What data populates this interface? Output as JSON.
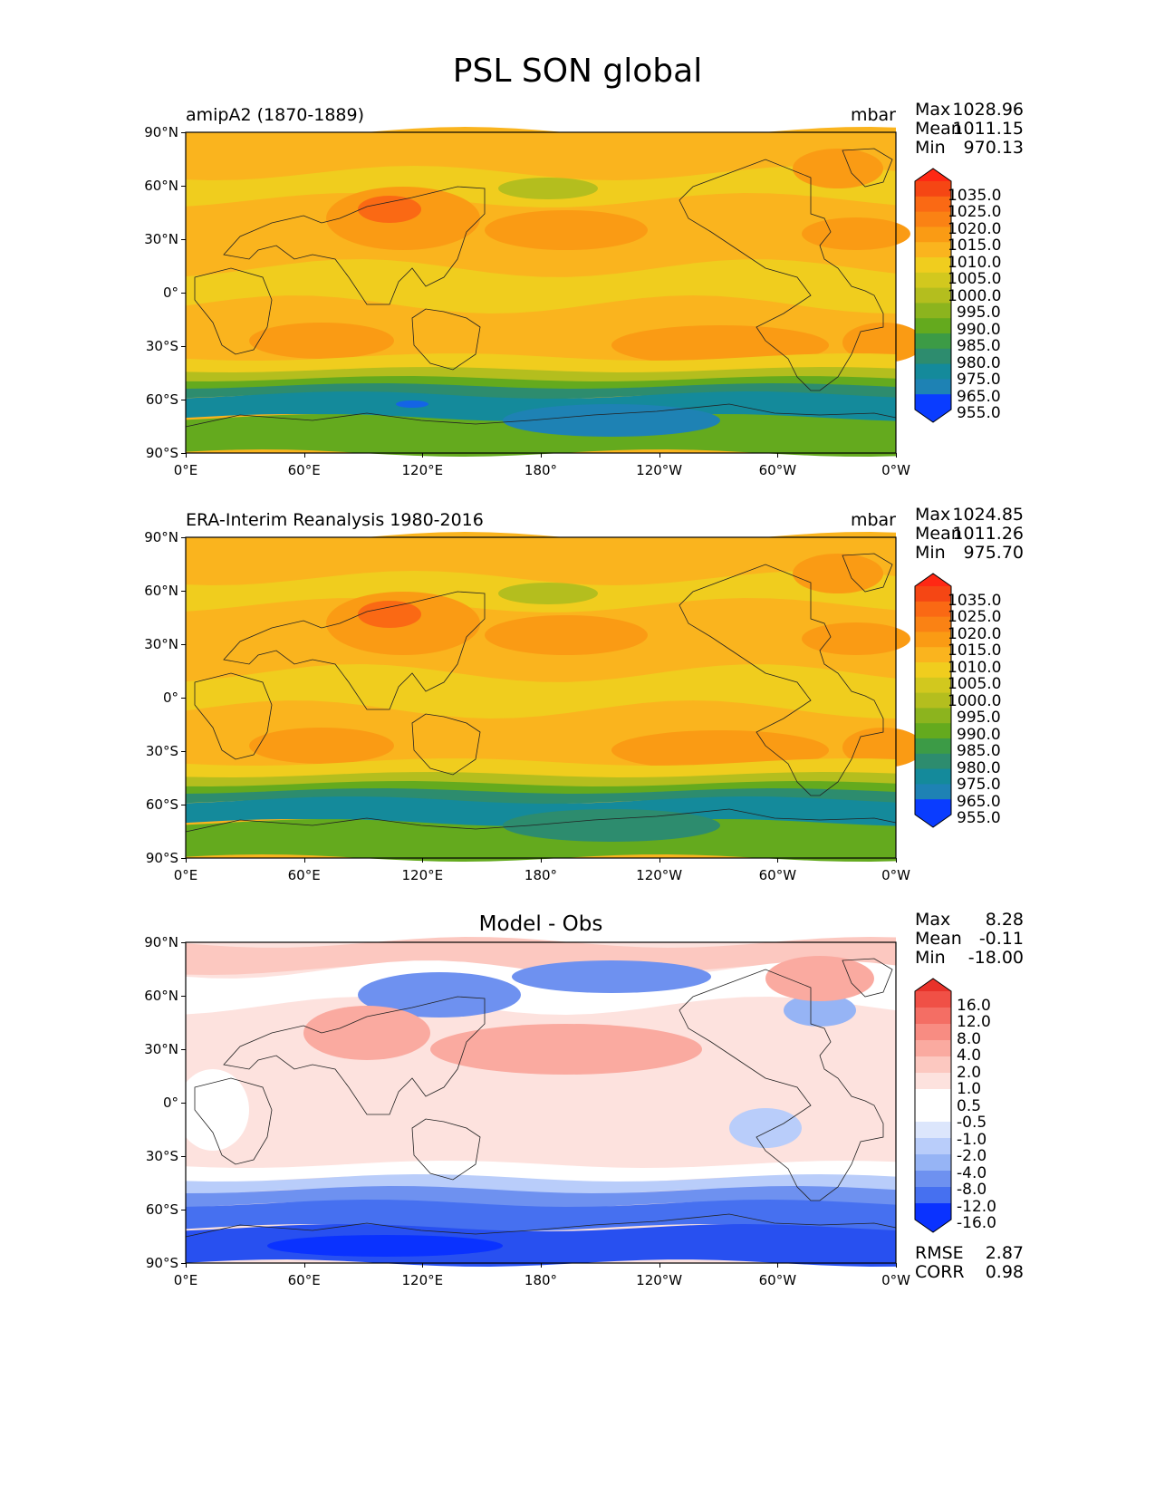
{
  "title": "PSL SON global",
  "colors": {
    "abs_levels": [
      "#0a3cff",
      "#1464e6",
      "#1e82b4",
      "#148a9b",
      "#2d8c6e",
      "#3c9b46",
      "#64aa1e",
      "#8cb41e",
      "#b4be1e",
      "#d2c81e",
      "#f0cd1e",
      "#fab41e",
      "#fa9b14",
      "#fa8214",
      "#fa6914",
      "#f54614",
      "#ff2814"
    ],
    "diff_levels": [
      "#0a32ff",
      "#2850f0",
      "#4670f0",
      "#6e91f0",
      "#96b4f5",
      "#b9cdfa",
      "#dce6fc",
      "#ffffff",
      "#ffffff",
      "#fde2de",
      "#fcc8c0",
      "#faaaa0",
      "#f88c82",
      "#f46e64",
      "#f05046",
      "#e8322a"
    ]
  },
  "panels": [
    {
      "left_label": "amipA2 (1870-1889)",
      "units": "mbar",
      "center_title": "",
      "stats": [
        {
          "label": "Max",
          "value": "1028.96"
        },
        {
          "label": "Mean",
          "value": "1011.15"
        },
        {
          "label": "Min",
          "value": "970.13"
        }
      ],
      "extra_stats": [],
      "colorbar_labels": [
        "1035.0",
        "1025.0",
        "1020.0",
        "1015.0",
        "1010.0",
        "1005.0",
        "1000.0",
        "995.0",
        "990.0",
        "985.0",
        "980.0",
        "975.0",
        "965.0",
        "955.0"
      ]
    },
    {
      "left_label": "ERA-Interim Reanalysis 1980-2016",
      "units": "mbar",
      "center_title": "",
      "stats": [
        {
          "label": "Max",
          "value": "1024.85"
        },
        {
          "label": "Mean",
          "value": "1011.26"
        },
        {
          "label": "Min",
          "value": "975.70"
        }
      ],
      "extra_stats": [],
      "colorbar_labels": [
        "1035.0",
        "1025.0",
        "1020.0",
        "1015.0",
        "1010.0",
        "1005.0",
        "1000.0",
        "995.0",
        "990.0",
        "985.0",
        "980.0",
        "975.0",
        "965.0",
        "955.0"
      ]
    },
    {
      "left_label": "",
      "units": "",
      "center_title": "Model - Obs",
      "stats": [
        {
          "label": "Max",
          "value": "8.28"
        },
        {
          "label": "Mean",
          "value": "-0.11"
        },
        {
          "label": "Min",
          "value": "-18.00"
        }
      ],
      "extra_stats": [
        {
          "label": "RMSE",
          "value": "2.87"
        },
        {
          "label": "CORR",
          "value": "0.98"
        }
      ],
      "colorbar_labels": [
        "16.0",
        "12.0",
        "8.0",
        "4.0",
        "2.0",
        "1.0",
        "0.5",
        "-0.5",
        "-1.0",
        "-2.0",
        "-4.0",
        "-8.0",
        "-12.0",
        "-16.0"
      ]
    }
  ],
  "axes": {
    "lat_ticks": [
      "90°N",
      "60°N",
      "30°N",
      "0°",
      "30°S",
      "60°S",
      "90°S"
    ],
    "lon_ticks": [
      "0°E",
      "60°E",
      "120°E",
      "180°",
      "120°W",
      "60°W",
      "0°W"
    ]
  }
}
